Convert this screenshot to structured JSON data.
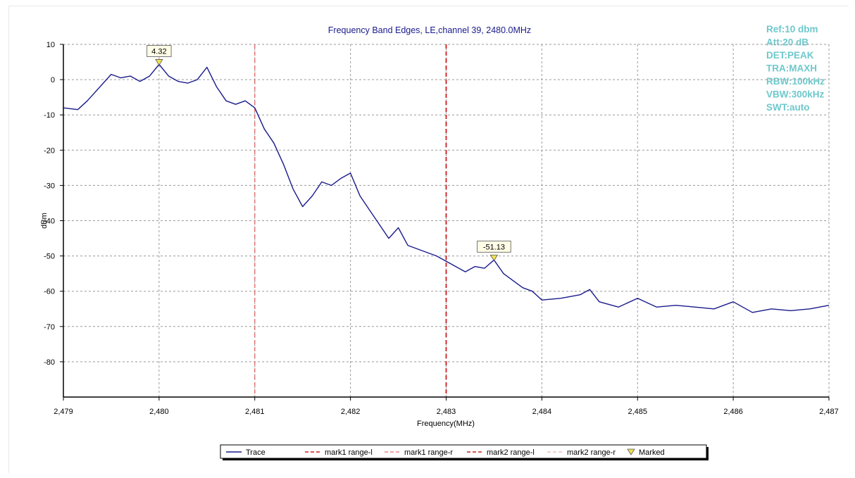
{
  "chart_data": {
    "type": "line",
    "title": "Frequency Band Edges, LE,channel 39, 2480.0MHz",
    "xlabel": "Frequency(MHz)",
    "ylabel": "dBm",
    "xlim": [
      2479,
      2487
    ],
    "ylim": [
      -90,
      10
    ],
    "x_ticks": [
      2479,
      2480,
      2481,
      2482,
      2483,
      2484,
      2485,
      2486,
      2487
    ],
    "x_tick_labels": [
      "2,479",
      "2,480",
      "2,481",
      "2,482",
      "2,483",
      "2,484",
      "2,485",
      "2,486",
      "2,487"
    ],
    "y_ticks": [
      10,
      0,
      -10,
      -20,
      -30,
      -40,
      -50,
      -60,
      -70,
      -80
    ],
    "y_tick_labels": [
      "10",
      "0",
      "-10",
      "-20",
      "-30",
      "-40",
      "-50",
      "-60",
      "-70",
      "-80"
    ],
    "grid": true,
    "legend_position": "bottom-center",
    "settings": [
      "Ref:10 dbm",
      "Att:20 dB",
      "DET:PEAK",
      "TRA:MAXH",
      "RBW:100kHz",
      "VBW:300kHz",
      "SWT:auto"
    ],
    "colors": {
      "trace": "#1a1a8c",
      "mark1": "#e07070",
      "mark2": "#cc2020",
      "settings": "#6ec8cc",
      "title": "#1a1a8c",
      "marker": "#f0e050"
    },
    "series": [
      {
        "name": "Trace",
        "x": [
          2479.0,
          2479.15,
          2479.25,
          2479.35,
          2479.5,
          2479.6,
          2479.7,
          2479.8,
          2479.9,
          2480.0,
          2480.1,
          2480.2,
          2480.3,
          2480.4,
          2480.5,
          2480.6,
          2480.7,
          2480.8,
          2480.9,
          2481.0,
          2481.1,
          2481.2,
          2481.3,
          2481.4,
          2481.5,
          2481.6,
          2481.7,
          2481.8,
          2481.9,
          2482.0,
          2482.1,
          2482.2,
          2482.3,
          2482.4,
          2482.5,
          2482.6,
          2482.7,
          2482.8,
          2482.9,
          2483.0,
          2483.1,
          2483.2,
          2483.3,
          2483.4,
          2483.5,
          2483.6,
          2483.7,
          2483.8,
          2483.9,
          2484.0,
          2484.2,
          2484.4,
          2484.5,
          2484.6,
          2484.8,
          2485.0,
          2485.2,
          2485.4,
          2485.6,
          2485.8,
          2486.0,
          2486.2,
          2486.4,
          2486.6,
          2486.8,
          2487.0
        ],
        "y": [
          -8,
          -8.5,
          -6,
          -3,
          1.5,
          0.5,
          1,
          -0.5,
          1,
          4.32,
          1,
          -0.5,
          -1,
          0,
          3.5,
          -2,
          -6,
          -7,
          -6,
          -8,
          -14,
          -18,
          -24,
          -31,
          -36,
          -33,
          -29,
          -30,
          -28,
          -26.5,
          -33,
          -37,
          -41,
          -45,
          -42,
          -47,
          -48,
          -49,
          -50,
          -51.5,
          -53,
          -54.5,
          -53,
          -53.5,
          -51.13,
          -55,
          -57,
          -59,
          -60,
          -62.5,
          -62,
          -61,
          -59.5,
          -63,
          -64.5,
          -62,
          -64.5,
          -64,
          -64.5,
          -65,
          -63,
          -66,
          -65,
          -65.5,
          -65,
          -64
        ]
      }
    ],
    "markers": [
      {
        "name": "mark1 range-l",
        "x": 2481,
        "style": "dashed"
      },
      {
        "name": "mark1 range-r",
        "x": 2481,
        "style": "dashed"
      },
      {
        "name": "mark2 range-l",
        "x": 2483,
        "style": "dashed"
      },
      {
        "name": "mark2 range-r",
        "x": 2483,
        "style": "dashed"
      }
    ],
    "marked_points": [
      {
        "x": 2480.0,
        "y": 4.32,
        "label": "4.32"
      },
      {
        "x": 2483.5,
        "y": -51.13,
        "label": "-51.13"
      }
    ],
    "legend": [
      "Trace",
      "mark1 range-l",
      "mark1 range-r",
      "mark2 range-l",
      "mark2 range-r",
      "Marked"
    ]
  }
}
